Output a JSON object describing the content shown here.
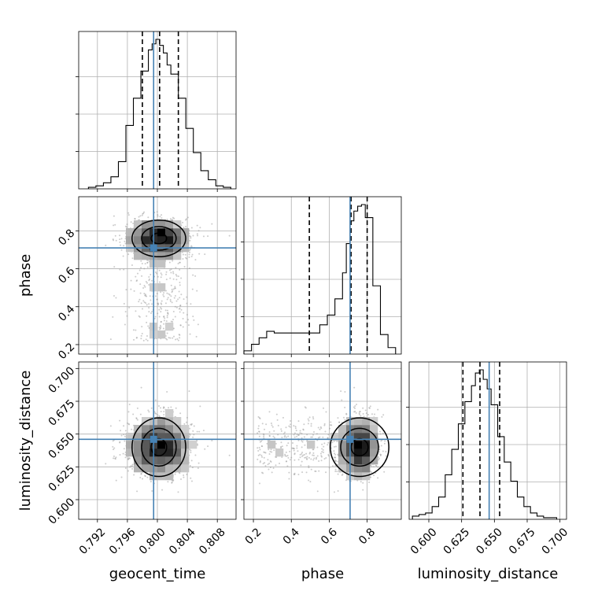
{
  "chart_data": {
    "type": "scatter",
    "subtype": "corner",
    "parameters": [
      "geocent_time",
      "phase",
      "luminosity_distance"
    ],
    "axis_labels": {
      "x": [
        "geocent_time",
        "phase",
        "luminosity_distance"
      ],
      "y": [
        "",
        "phase",
        "luminosity_distance"
      ]
    },
    "ranges": {
      "geocent_time": [
        0.7895,
        0.8105
      ],
      "phase": [
        0.15,
        0.98
      ],
      "luminosity_distance": [
        0.585,
        0.705
      ]
    },
    "ticks": {
      "geocent_time": {
        "values": [
          0.792,
          0.796,
          0.8,
          0.804,
          0.808
        ],
        "labels": [
          "0.792",
          "0.796",
          "0.800",
          "0.804",
          "0.808"
        ]
      },
      "phase": {
        "values": [
          0.2,
          0.4,
          0.6,
          0.8
        ],
        "labels": [
          "0.2",
          "0.4",
          "0.6",
          "0.8"
        ]
      },
      "luminosity_distance": {
        "values": [
          0.6,
          0.625,
          0.65,
          0.675,
          0.7
        ],
        "labels": [
          "0.600",
          "0.625",
          "0.650",
          "0.675",
          "0.700"
        ]
      }
    },
    "truths": {
      "geocent_time": 0.7995,
      "phase": 0.71,
      "luminosity_distance": 0.646
    },
    "quantiles": {
      "geocent_time": [
        0.798,
        0.8003,
        0.8028
      ],
      "phase": [
        0.495,
        0.715,
        0.8
      ],
      "luminosity_distance": [
        0.626,
        0.639,
        0.654
      ]
    },
    "histograms": {
      "geocent_time": {
        "bin_edges": [
          0.7908,
          0.7918,
          0.7928,
          0.7938,
          0.7948,
          0.7958,
          0.7968,
          0.7978,
          0.7988,
          0.7993,
          0.7998,
          0.8003,
          0.8008,
          0.8013,
          0.8018,
          0.8028,
          0.8038,
          0.8048,
          0.8058,
          0.8068,
          0.8078,
          0.8088,
          0.8098
        ],
        "counts": [
          1,
          2,
          4,
          8,
          18,
          42,
          60,
          78,
          92,
          96,
          99,
          95,
          90,
          82,
          76,
          60,
          40,
          24,
          12,
          6,
          2,
          1
        ]
      },
      "phase": {
        "bin_edges": [
          0.15,
          0.19,
          0.23,
          0.27,
          0.31,
          0.35,
          0.39,
          0.43,
          0.47,
          0.51,
          0.55,
          0.59,
          0.63,
          0.67,
          0.69,
          0.71,
          0.73,
          0.75,
          0.77,
          0.79,
          0.83,
          0.87,
          0.91,
          0.95
        ],
        "counts": [
          2,
          6,
          10,
          14,
          13,
          13,
          13,
          13,
          13,
          13,
          18,
          24,
          34,
          50,
          68,
          82,
          88,
          91,
          92,
          84,
          42,
          12,
          4
        ]
      },
      "luminosity_distance": {
        "bin_edges": [
          0.5875,
          0.5925,
          0.5975,
          0.6025,
          0.6075,
          0.6125,
          0.6175,
          0.6225,
          0.6275,
          0.6325,
          0.6355,
          0.6385,
          0.6415,
          0.6445,
          0.6475,
          0.6525,
          0.6575,
          0.6625,
          0.6675,
          0.6725,
          0.6775,
          0.6825,
          0.6875,
          0.6925,
          0.6975
        ],
        "counts": [
          2,
          3,
          4,
          8,
          14,
          28,
          44,
          60,
          74,
          84,
          92,
          94,
          88,
          82,
          72,
          52,
          36,
          24,
          14,
          8,
          4,
          2,
          1,
          1
        ]
      }
    },
    "grid": true,
    "colors": {
      "truth": "#4682b4",
      "contour": "#000000",
      "points": "#888888"
    }
  }
}
